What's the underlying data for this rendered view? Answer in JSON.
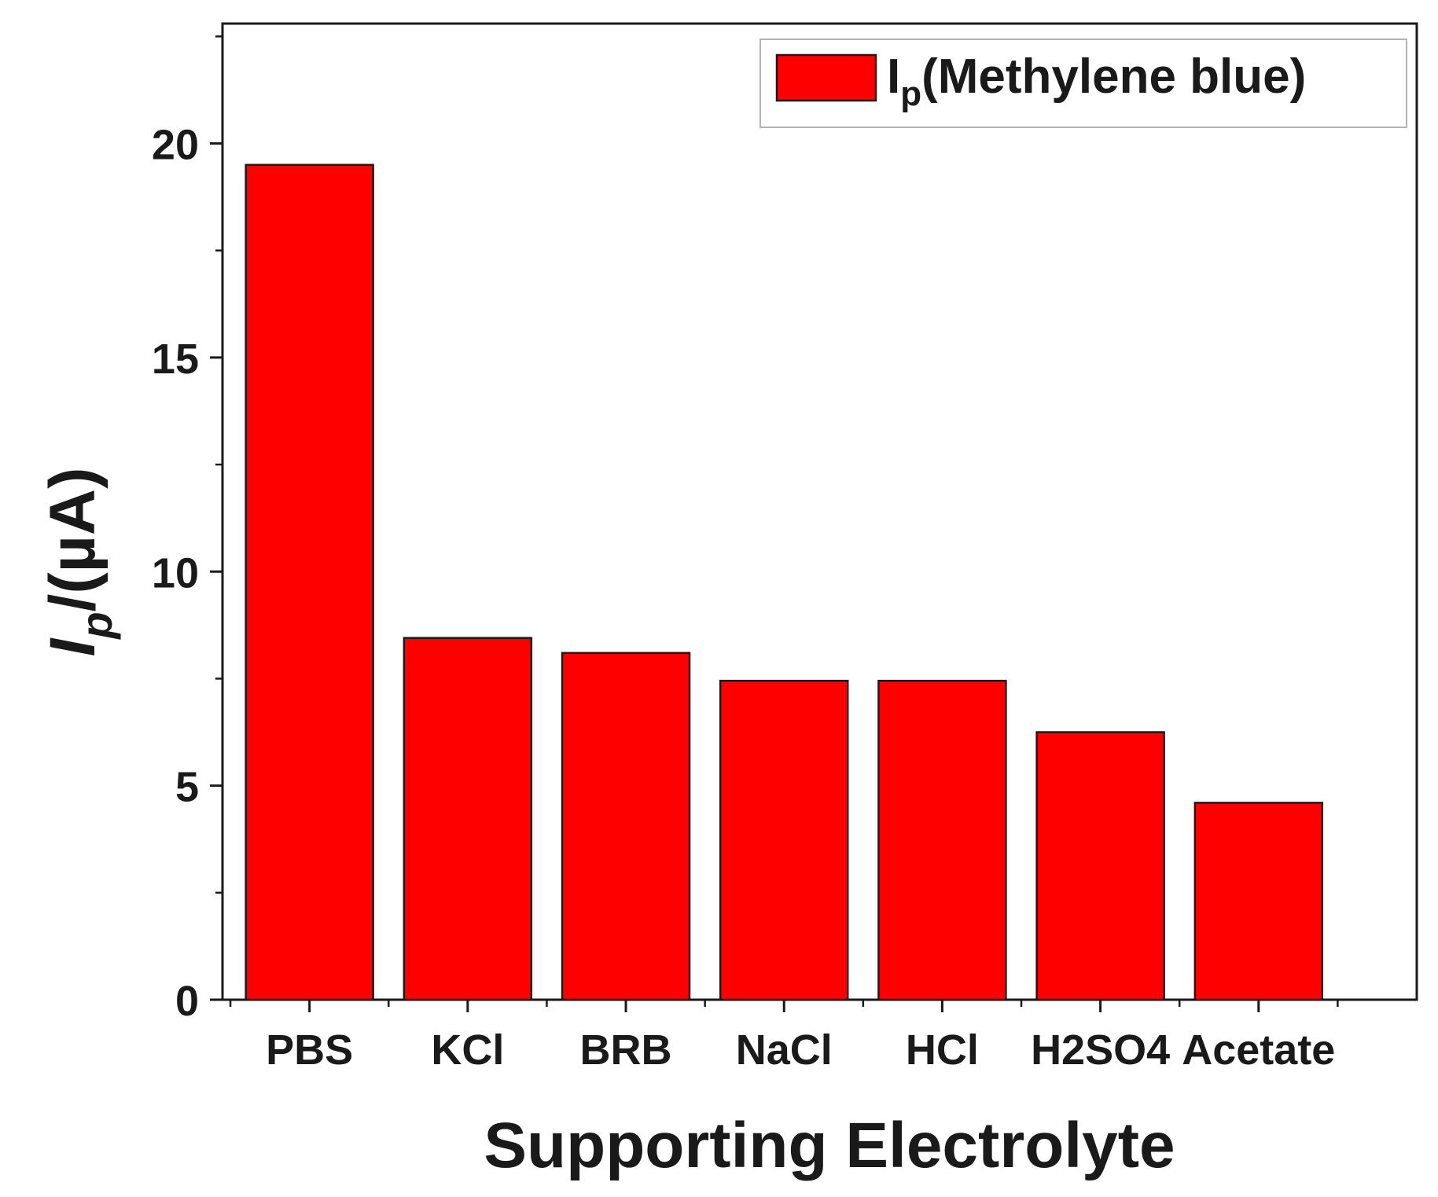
{
  "chart_data": {
    "type": "bar",
    "title": "",
    "xlabel": "Supporting Electrolyte",
    "ylabel": {
      "main": "I",
      "sub": "p",
      "rest": "/(µA)"
    },
    "categories": [
      "PBS",
      "KCl",
      "BRB",
      "NaCl",
      "HCl",
      "H2SO4",
      "Acetate"
    ],
    "series": [
      {
        "name": "Ip(Methylene blue)",
        "legend": {
          "main": "I",
          "sub": "p",
          "rest": "(Methylene blue)"
        },
        "color": "#ff0000",
        "values": [
          19.5,
          8.45,
          8.1,
          7.45,
          7.45,
          6.25,
          4.6
        ]
      }
    ],
    "ylim": [
      0,
      22.8
    ],
    "yticks": [
      0,
      5,
      10,
      15,
      20
    ],
    "legend_position": "top-right",
    "grid": false
  }
}
